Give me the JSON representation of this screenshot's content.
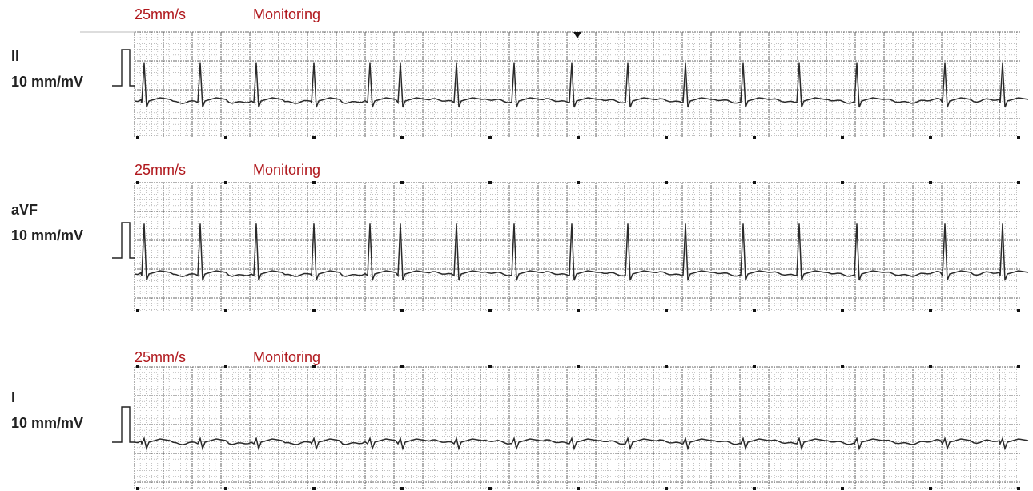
{
  "strips": [
    {
      "speed_label": "25mm/s",
      "mode_label": "Monitoring",
      "lead_label": "II",
      "gain_label": "10 mm/mV",
      "r_wave_height": 0.55,
      "complexes_per_strip": 15
    },
    {
      "speed_label": "25mm/s",
      "mode_label": "Monitoring",
      "lead_label": "aVF",
      "gain_label": "10 mm/mV",
      "r_wave_height": 0.55,
      "complexes_per_strip": 15
    },
    {
      "speed_label": "25mm/s",
      "mode_label": "Monitoring",
      "lead_label": "I",
      "gain_label": "10 mm/mV",
      "r_wave_height": 0.05,
      "complexes_per_strip": 15
    }
  ],
  "colors": {
    "grid_minor": "#9a9a9a",
    "grid_major": "#3a3a3a",
    "trace": "#2a2a2a",
    "label_red": "#b0171c"
  }
}
